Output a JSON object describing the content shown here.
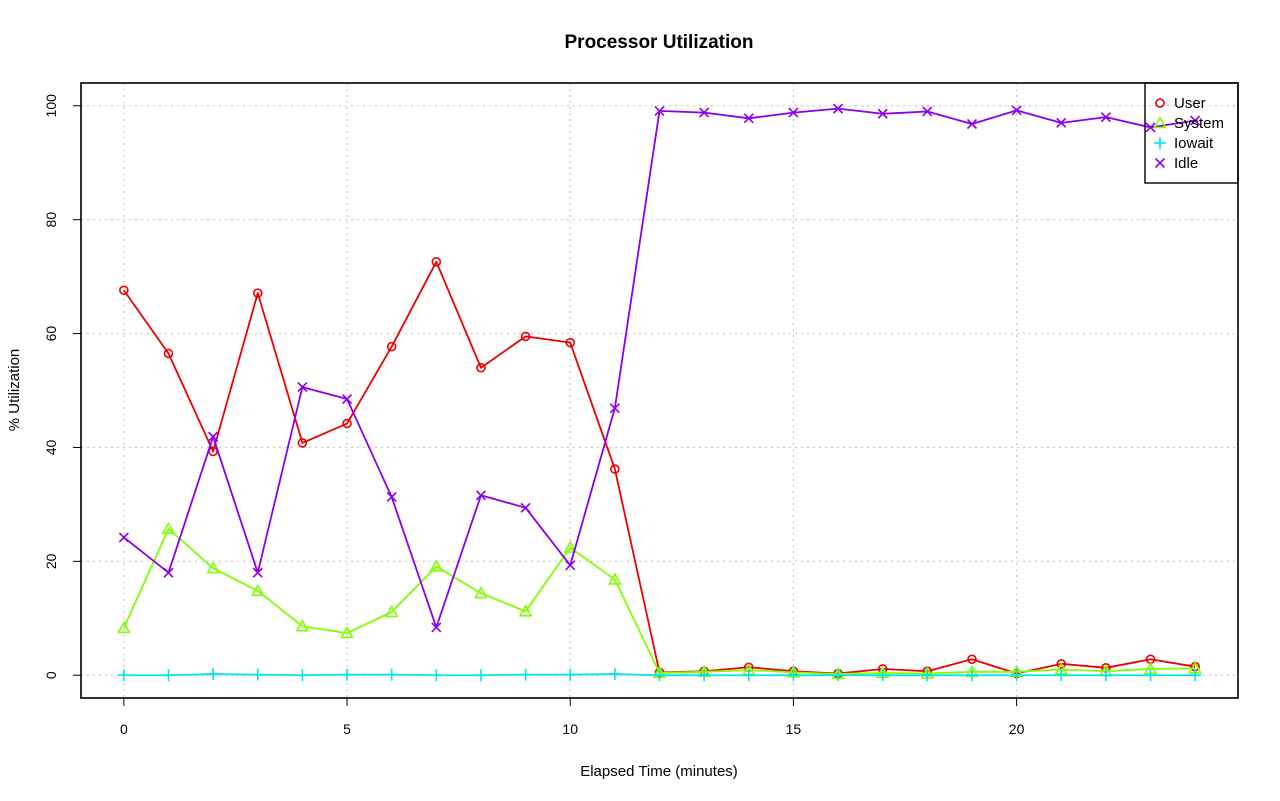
{
  "chart_data": {
    "type": "line",
    "title": "Processor Utilization",
    "xlabel": "Elapsed Time (minutes)",
    "ylabel": "% Utilization",
    "xlim": [
      -0.96,
      24.96
    ],
    "ylim": [
      -4,
      104
    ],
    "x_ticks": [
      0,
      5,
      10,
      15,
      20
    ],
    "y_ticks": [
      0,
      20,
      40,
      60,
      80,
      100
    ],
    "grid": true,
    "legend_position": "top-right",
    "x": [
      0,
      1,
      2,
      3,
      4,
      5,
      6,
      7,
      8,
      9,
      10,
      11,
      12,
      13,
      14,
      15,
      16,
      17,
      18,
      19,
      20,
      21,
      22,
      23,
      24
    ],
    "series": [
      {
        "name": "User",
        "color": "#ee0000",
        "marker": "circle",
        "values": [
          67.6,
          56.5,
          39.3,
          67.1,
          40.8,
          44.2,
          57.7,
          72.6,
          54.0,
          59.5,
          58.4,
          36.2,
          0.5,
          0.7,
          1.4,
          0.7,
          0.3,
          1.1,
          0.7,
          2.8,
          0.3,
          2.0,
          1.3,
          2.8,
          1.5
        ]
      },
      {
        "name": "System",
        "color": "#7fff00",
        "marker": "triangle",
        "values": [
          8.3,
          25.7,
          18.8,
          14.8,
          8.6,
          7.4,
          11.1,
          19.1,
          14.4,
          11.2,
          22.4,
          16.8,
          0.4,
          0.6,
          0.9,
          0.5,
          0.2,
          0.4,
          0.3,
          0.6,
          0.6,
          1.0,
          0.7,
          1.1,
          1.2
        ]
      },
      {
        "name": "Iowait",
        "color": "#00e5ee",
        "marker": "plus",
        "values": [
          0.0,
          0.0,
          0.2,
          0.1,
          0.0,
          0.1,
          0.1,
          0.0,
          0.0,
          0.1,
          0.1,
          0.2,
          0.0,
          0.0,
          0.0,
          0.0,
          0.0,
          0.0,
          0.0,
          0.0,
          0.0,
          0.0,
          0.0,
          0.0,
          0.0
        ]
      },
      {
        "name": "Idle",
        "color": "#8a00ee",
        "marker": "cross",
        "values": [
          24.2,
          18.0,
          41.9,
          18.0,
          50.6,
          48.5,
          31.3,
          8.4,
          31.6,
          29.4,
          19.3,
          46.9,
          99.1,
          98.8,
          97.8,
          98.8,
          99.5,
          98.6,
          99.0,
          96.8,
          99.2,
          97.0,
          98.0,
          96.2,
          97.4
        ]
      }
    ]
  }
}
